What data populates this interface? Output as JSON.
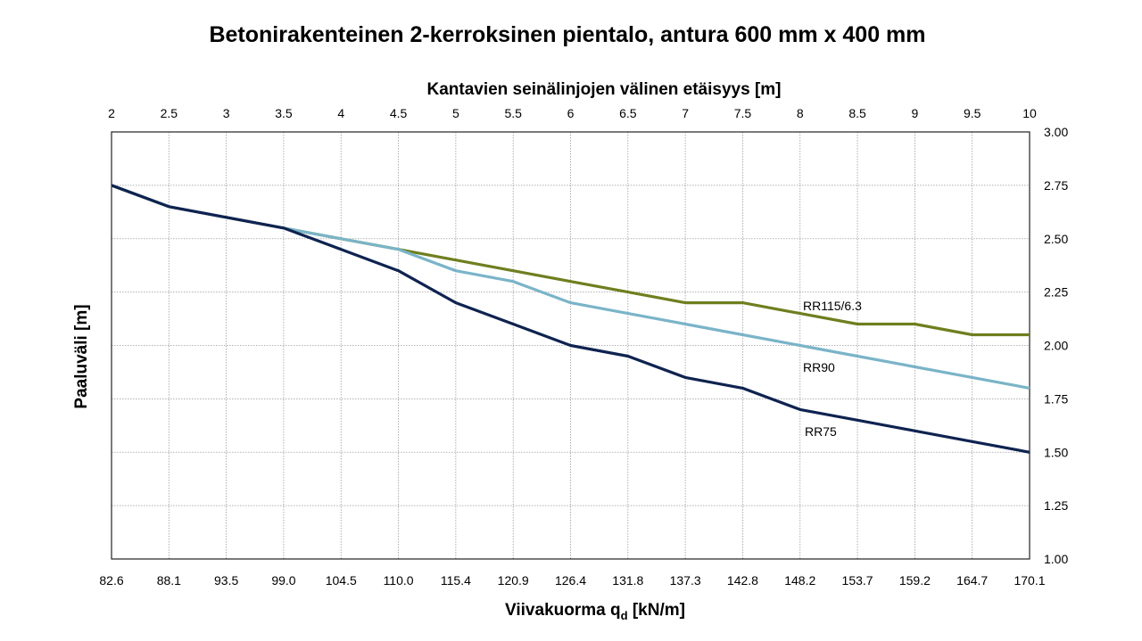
{
  "chart_data": {
    "type": "line",
    "title": "Betonirakenteinen 2-kerroksinen pientalo, antura 600 mm x 400 mm",
    "xlabel_top": "Kantavien seinälinjojen välinen etäisyys [m]",
    "xlabel_bottom_main": "Viivakuorma q",
    "xlabel_bottom_sub": "d",
    "xlabel_bottom_unit": " [kN/m]",
    "ylabel": "Paaluväli [m]",
    "x_top_ticks": [
      "2",
      "2.5",
      "3",
      "3.5",
      "4",
      "4.5",
      "5",
      "5.5",
      "6",
      "6.5",
      "7",
      "7.5",
      "8",
      "8.5",
      "9",
      "9.5",
      "10"
    ],
    "x_bottom_ticks": [
      "82.6",
      "88.1",
      "93.5",
      "99.0",
      "104.5",
      "110.0",
      "115.4",
      "120.9",
      "126.4",
      "131.8",
      "137.3",
      "142.8",
      "148.2",
      "153.7",
      "159.2",
      "164.7",
      "170.1"
    ],
    "y_ticks": [
      "1.00",
      "1.25",
      "1.50",
      "1.75",
      "2.00",
      "2.25",
      "2.50",
      "2.75",
      "3.00"
    ],
    "x": [
      2,
      2.5,
      3,
      3.5,
      4,
      4.5,
      5,
      5.5,
      6,
      6.5,
      7,
      7.5,
      8,
      8.5,
      9,
      9.5,
      10
    ],
    "xlim": [
      2,
      10
    ],
    "ylim": [
      1.0,
      3.0
    ],
    "grid": true,
    "series": [
      {
        "name": "RR115/6.3",
        "color": "#6e7f1f",
        "values": [
          2.75,
          2.65,
          2.6,
          2.55,
          2.5,
          2.45,
          2.4,
          2.35,
          2.3,
          2.25,
          2.2,
          2.2,
          2.15,
          2.1,
          2.1,
          2.05,
          2.05
        ]
      },
      {
        "name": "RR90",
        "color": "#7ab4c8",
        "values": [
          2.75,
          2.65,
          2.6,
          2.55,
          2.5,
          2.45,
          2.35,
          2.3,
          2.2,
          2.15,
          2.1,
          2.05,
          2.0,
          1.95,
          1.9,
          1.85,
          1.8
        ]
      },
      {
        "name": "RR75",
        "color": "#0f2350",
        "values": [
          2.75,
          2.65,
          2.6,
          2.55,
          2.45,
          2.35,
          2.2,
          2.1,
          2.0,
          1.95,
          1.85,
          1.8,
          1.7,
          1.65,
          1.6,
          1.55,
          1.5
        ]
      }
    ]
  }
}
